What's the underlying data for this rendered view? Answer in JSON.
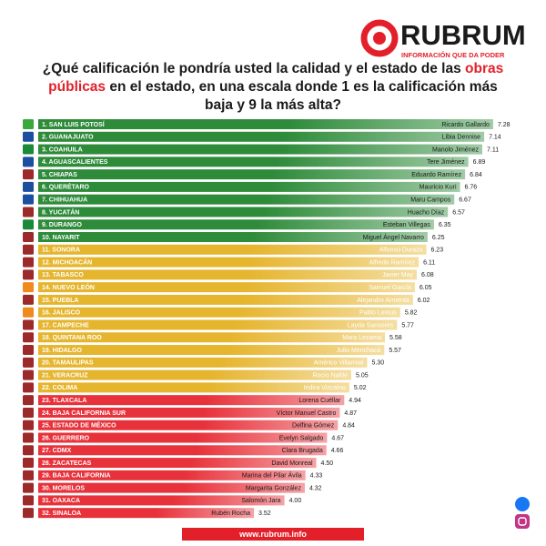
{
  "header": {
    "brand": "RUBRUM",
    "tagline": "INFORMACIÓN QUE DA PODER"
  },
  "chart_data": {
    "type": "bar",
    "title_parts": [
      "¿Qué calificación le pondría usted la calidad y el estado de las",
      "obras públicas",
      "en el estado, en una escala donde 1 es la calificación más baja y 9 la más alta?"
    ],
    "categories": [
      "1. SAN LUIS POTOSÍ",
      "2. GUANAJUATO",
      "3. COAHUILA",
      "4. AGUASCALIENTES",
      "5. CHIAPAS",
      "6. QUERÉTARO",
      "7. CHIHUAHUA",
      "8. YUCATÁN",
      "9. DURANGO",
      "10. NAYARIT",
      "11. SONORA",
      "12. MICHOACÁN",
      "13. TABASCO",
      "14. NUEVO LEÓN",
      "15. PUEBLA",
      "16. JALISCO",
      "17. CAMPECHE",
      "18. QUINTANA ROO",
      "19. HIDALGO",
      "20. TAMAULIPAS",
      "21. VERACRUZ",
      "22. COLIMA",
      "23. TLAXCALA",
      "24. BAJA CALIFORNIA SUR",
      "25. ESTADO DE MÉXICO",
      "26. GUERRERO",
      "27. CDMX",
      "28. ZACATECAS",
      "29. BAJA CALIFORNIA",
      "30. MORELOS",
      "31. OAXACA",
      "32. SINALOA"
    ],
    "governors": [
      "Ricardo Gallardo",
      "Libia Dennise",
      "Manolo Jiménez",
      "Tere Jiménez",
      "Eduardo Ramírez",
      "Mauricio Kuri",
      "Maru Campos",
      "Huacho Díaz",
      "Esteban Villegas",
      "Miguel Ángel Navarro",
      "Alfonso Durazo",
      "Alfredo Ramírez",
      "Javier May",
      "Samuel García",
      "Alejandro Armenta",
      "Pablo Lemus",
      "Layda Sansores",
      "Mara Lezama",
      "Julio Menchaca",
      "Américo Villarreal",
      "Rocío Nahle",
      "Indira Vizcaíno",
      "Lorena Cuéllar",
      "Víctor Manuel Castro",
      "Delfina Gómez",
      "Evelyn Salgado",
      "Clara Brugada",
      "David Monreal",
      "Marina del Pilar Ávila",
      "Margarita González",
      "Salomón Jara",
      "Rubén Rocha"
    ],
    "values": [
      7.28,
      7.14,
      7.11,
      6.89,
      6.84,
      6.76,
      6.67,
      6.57,
      6.35,
      6.25,
      6.23,
      6.11,
      6.08,
      6.05,
      6.02,
      5.82,
      5.77,
      5.58,
      5.57,
      5.3,
      5.05,
      5.02,
      4.94,
      4.87,
      4.84,
      4.67,
      4.66,
      4.5,
      4.33,
      4.32,
      4.0,
      3.52
    ],
    "value_labels": [
      "7.28",
      "7.14",
      "7.11",
      "6.89",
      "6.84",
      "6.76",
      "6.67",
      "6.57",
      "6.35",
      "6.25",
      "6.23",
      "6.11",
      "6.08",
      "6.05",
      "6.02",
      "5.82",
      "5.77",
      "5.58",
      "5.57",
      "5.30",
      "5.05",
      "5.02",
      "4.94",
      "4.87",
      "4.84",
      "4.67",
      "4.66",
      "4.50",
      "4.33",
      "4.32",
      "4.00",
      "3.52"
    ],
    "colors": [
      "#2e8b3a",
      "#2e8b3a",
      "#2e8b3a",
      "#2e8b3a",
      "#2e8b3a",
      "#2e8b3a",
      "#2e8b3a",
      "#2e8b3a",
      "#2e8b3a",
      "#2e8b3a",
      "#e6b52e",
      "#e6b52e",
      "#e6b52e",
      "#e6b52e",
      "#e6b52e",
      "#e6b52e",
      "#e6b52e",
      "#e6b52e",
      "#e6b52e",
      "#e6b52e",
      "#e6b52e",
      "#e6b52e",
      "#e8323b",
      "#e8323b",
      "#e8323b",
      "#e8323b",
      "#e8323b",
      "#e8323b",
      "#e8323b",
      "#e8323b",
      "#e8323b",
      "#e8323b"
    ]
  },
  "footer": {
    "url": "www.rubrum.info"
  }
}
